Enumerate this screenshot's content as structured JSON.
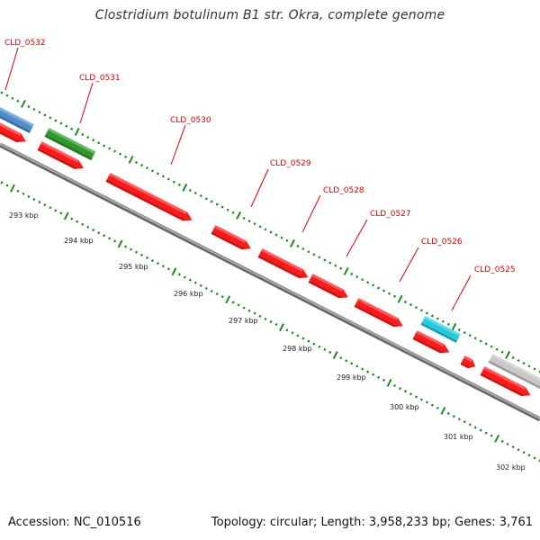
{
  "title": "Clostridium botulinum B1 str. Okra, complete genome",
  "footer": {
    "accession": "Accession: NC_010516",
    "topology": "Topology: circular; Length: 3,958,233 bp; Genes: 3,761"
  },
  "colors": {
    "cds": "#ff1a1a",
    "rna_blue": "#4d8fcc",
    "rna_green": "#2e9a2e",
    "rna_cyan": "#22ccdd",
    "grey_feature": "#c8c8c8",
    "backbone": "#888888",
    "ticks": "#1e8a1e",
    "label": "#dd0000"
  },
  "genes": [
    {
      "label": "CLD_0532"
    },
    {
      "label": "CLD_0531"
    },
    {
      "label": "CLD_0530"
    },
    {
      "label": "CLD_0529"
    },
    {
      "label": "CLD_0528"
    },
    {
      "label": "CLD_0527"
    },
    {
      "label": "CLD_0526"
    },
    {
      "label": "CLD_0525"
    }
  ],
  "kbp_ticks": [
    "293 kbp",
    "294 kbp",
    "295 kbp",
    "296 kbp",
    "297 kbp",
    "298 kbp",
    "299 kbp",
    "300 kbp",
    "301 kbp",
    "302 kbp"
  ]
}
